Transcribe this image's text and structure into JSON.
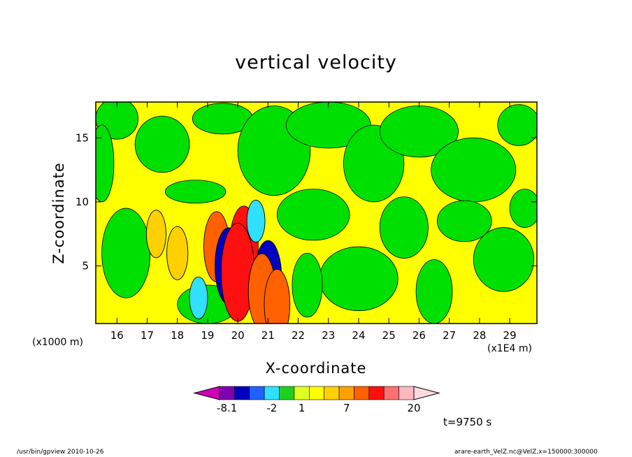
{
  "chart_data": {
    "type": "heatmap",
    "title": "vertical velocity",
    "xlabel": "X-coordinate",
    "ylabel": "Z-coordinate",
    "x_unit_label": "(x1000 m)",
    "x_scale_label": "(x1E4 m)",
    "xlim": [
      15.3,
      29.9
    ],
    "ylim": [
      0.5,
      17.8
    ],
    "x_ticks": [
      "16",
      "17",
      "18",
      "19",
      "20",
      "21",
      "22",
      "23",
      "24",
      "25",
      "26",
      "27",
      "28",
      "29"
    ],
    "y_ticks": [
      "5",
      "10",
      "15"
    ],
    "colorbar": {
      "labels": [
        "-8.1",
        "-2",
        "1",
        "7",
        "20"
      ],
      "colors": [
        "#d000b8",
        "#8000b0",
        "#0000c0",
        "#2060ff",
        "#30e0ff",
        "#20d020",
        "#e0ff20",
        "#ffff00",
        "#ffd000",
        "#ffa000",
        "#ff6000",
        "#ff1010",
        "#ff7070",
        "#ffb8c0",
        "#ffd8e0"
      ],
      "extend": "both"
    },
    "time_label": "t=9750 s",
    "background_level_colors": {
      "negative_small": "#00e000",
      "positive_small": "#ffff00"
    },
    "features": [
      {
        "kind": "updraft",
        "x": 17.3,
        "z": 7.5,
        "value": 3
      },
      {
        "kind": "updraft",
        "x": 18.0,
        "z": 6.0,
        "value": 4
      },
      {
        "kind": "updraft",
        "x": 19.3,
        "z": 6.5,
        "value": 7
      },
      {
        "kind": "downdraft",
        "x": 19.7,
        "z": 5.0,
        "value": -8.1
      },
      {
        "kind": "updraft",
        "x": 20.2,
        "z": 6.5,
        "value": 9
      },
      {
        "kind": "updraft",
        "x": 20.0,
        "z": 4.5,
        "value": 12
      },
      {
        "kind": "downdraft",
        "x": 20.6,
        "z": 8.5,
        "value": -2
      },
      {
        "kind": "downdraft",
        "x": 21.0,
        "z": 4.0,
        "value": -8.1
      },
      {
        "kind": "updraft",
        "x": 20.8,
        "z": 3.0,
        "value": 8
      },
      {
        "kind": "updraft",
        "x": 21.3,
        "z": 2.0,
        "value": 7
      },
      {
        "kind": "downdraft",
        "x": 18.7,
        "z": 2.5,
        "value": -2
      }
    ]
  },
  "footer": {
    "left": "/usr/bin/gpview   2010-10-26",
    "right": "arare-earth_VelZ.nc@VelZ,x=150000:300000"
  }
}
